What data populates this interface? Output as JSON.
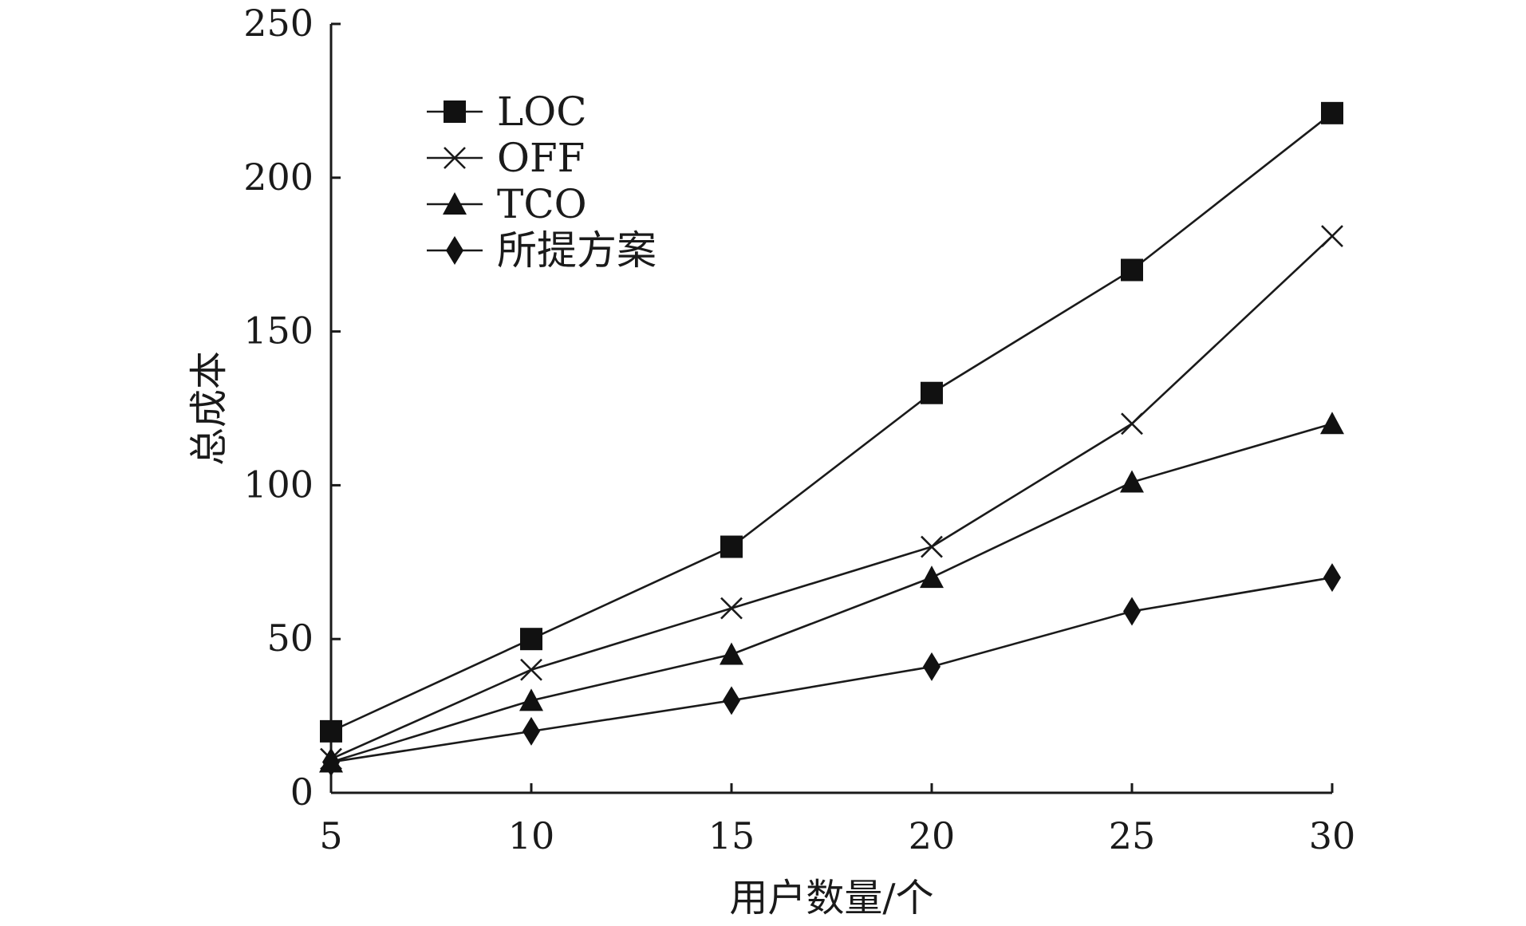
{
  "chart_data": {
    "type": "line",
    "xlabel": "用户数量/个",
    "ylabel": "总成本",
    "x": [
      5,
      10,
      15,
      20,
      25,
      30
    ],
    "xlim": [
      5,
      30
    ],
    "ylim": [
      0,
      250
    ],
    "xticks": [
      5,
      10,
      15,
      20,
      25,
      30
    ],
    "yticks": [
      0,
      50,
      100,
      150,
      200,
      250
    ],
    "grid": false,
    "legend_position": "top-left",
    "series": [
      {
        "name": "LOC",
        "marker": "square",
        "values": [
          20,
          50,
          80,
          130,
          170,
          221
        ]
      },
      {
        "name": "OFF",
        "marker": "x",
        "values": [
          11,
          40,
          60,
          80,
          120,
          181
        ]
      },
      {
        "name": "TCO",
        "marker": "triangle",
        "values": [
          10,
          30,
          45,
          70,
          101,
          120
        ]
      },
      {
        "name": "所提方案",
        "marker": "diamond",
        "values": [
          10,
          20,
          30,
          41,
          59,
          70
        ]
      }
    ],
    "colors": {
      "line": "#1a1a1a",
      "marker": "#111111",
      "background": "#ffffff"
    }
  }
}
